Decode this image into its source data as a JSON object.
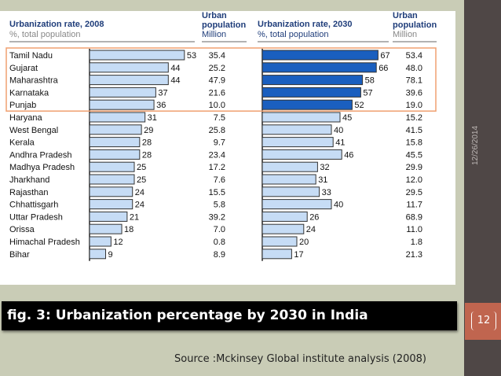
{
  "chart_data": {
    "type": "bar",
    "headers": {
      "rate_2008_title": "Urbanization rate, 2008",
      "rate_2008_sub": "%, total population",
      "pop_2008_title": [
        "Urban",
        "population"
      ],
      "pop_2008_sub": "Million",
      "rate_2030_title": "Urbanization rate, 2030",
      "rate_2030_sub": "%, total population",
      "pop_2030_title": [
        "Urban",
        "population"
      ],
      "pop_2030_sub": "Million"
    },
    "categories": [
      "Tamil Nadu",
      "Gujarat",
      "Maharashtra",
      "Karnataka",
      "Punjab",
      "Haryana",
      "West Bengal",
      "Kerala",
      "Andhra Pradesh",
      "Madhya Pradesh",
      "Jharkhand",
      "Rajasthan",
      "Chhattisgarh",
      "Uttar Pradesh",
      "Orissa",
      "Himachal Pradesh",
      "Bihar"
    ],
    "series": [
      {
        "name": "Urbanization rate, 2008",
        "values": [
          53,
          44,
          44,
          37,
          36,
          31,
          29,
          28,
          28,
          25,
          25,
          24,
          24,
          21,
          18,
          12,
          9
        ]
      },
      {
        "name": "Urban population 2008",
        "values": [
          "35.4",
          "25.2",
          "47.9",
          "21.6",
          "10.0",
          "7.5",
          "25.8",
          "9.7",
          "23.4",
          "17.2",
          "7.6",
          "15.5",
          "5.8",
          "39.2",
          "7.0",
          "0.8",
          "8.9"
        ]
      },
      {
        "name": "Urbanization rate, 2030",
        "values": [
          67,
          66,
          58,
          57,
          52,
          45,
          40,
          41,
          46,
          32,
          31,
          33,
          40,
          26,
          24,
          20,
          17
        ]
      },
      {
        "name": "Urban population 2030",
        "values": [
          "53.4",
          "48.0",
          "78.1",
          "39.6",
          "19.0",
          "15.2",
          "41.5",
          "15.8",
          "45.5",
          "29.9",
          "12.0",
          "29.5",
          "11.7",
          "68.9",
          "11.0",
          "1.8",
          "21.3"
        ]
      }
    ],
    "highlighted_count": 5,
    "colors": {
      "bar_light": "#c6dcf5",
      "bar_highlight_2030": "#1a5fbf",
      "highlight_box": "#f0a070",
      "header_text": "#1f3d7a"
    }
  },
  "slide": {
    "caption": "fig. 3: Urbanization percentage by 2030 in India",
    "source": "Source :Mckinsey Global institute analysis (2008)",
    "date": "12/26/2014",
    "page_number": "12"
  }
}
